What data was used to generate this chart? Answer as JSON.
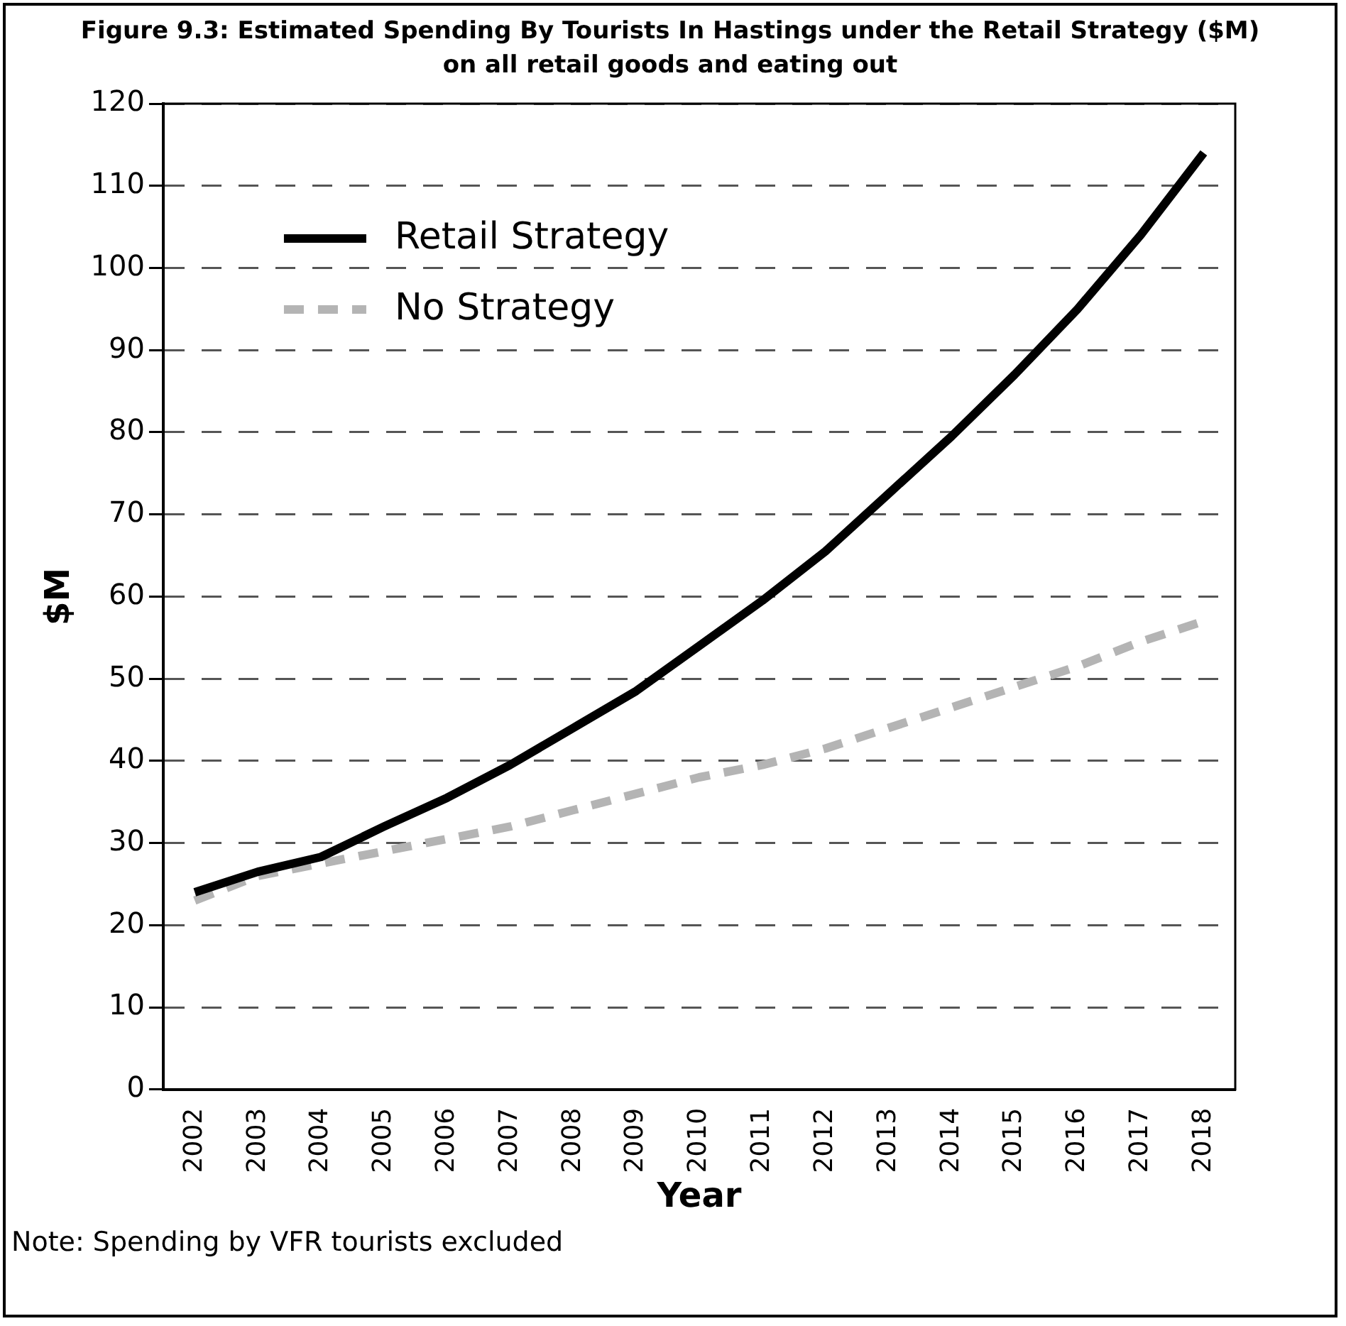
{
  "chart_data": {
    "type": "line",
    "title": "Figure 9.3: Estimated Spending By Tourists In Hastings under the Retail Strategy ($M) on all retail goods and eating out",
    "xlabel": "Year",
    "ylabel": "$M",
    "categories": [
      "2002",
      "2003",
      "2004",
      "2005",
      "2006",
      "2007",
      "2008",
      "2009",
      "2010",
      "2011",
      "2012",
      "2013",
      "2014",
      "2015",
      "2016",
      "2017",
      "2018"
    ],
    "series": [
      {
        "name": "Retail Strategy",
        "color": "#000000",
        "line_style": "solid",
        "values": [
          24,
          26.5,
          28.3,
          32,
          35.5,
          39.5,
          44,
          48.5,
          54,
          59.5,
          65.5,
          72.5,
          79.5,
          87,
          95,
          104,
          114
        ]
      },
      {
        "name": "No Strategy",
        "color": "#b4b4b4",
        "line_style": "dashed",
        "values": [
          23,
          26,
          27.5,
          29,
          30.5,
          32,
          34,
          36,
          38,
          39.5,
          41.5,
          44,
          46.5,
          49,
          51.5,
          54.5,
          57
        ]
      }
    ],
    "ylim": [
      0,
      120
    ],
    "yticks": [
      0,
      10,
      20,
      30,
      40,
      50,
      60,
      70,
      80,
      90,
      100,
      110,
      120
    ],
    "grid": "y",
    "legend": "top left",
    "marker": "none",
    "annotations": [
      "Note: Spending by VFR tourists excluded"
    ]
  }
}
